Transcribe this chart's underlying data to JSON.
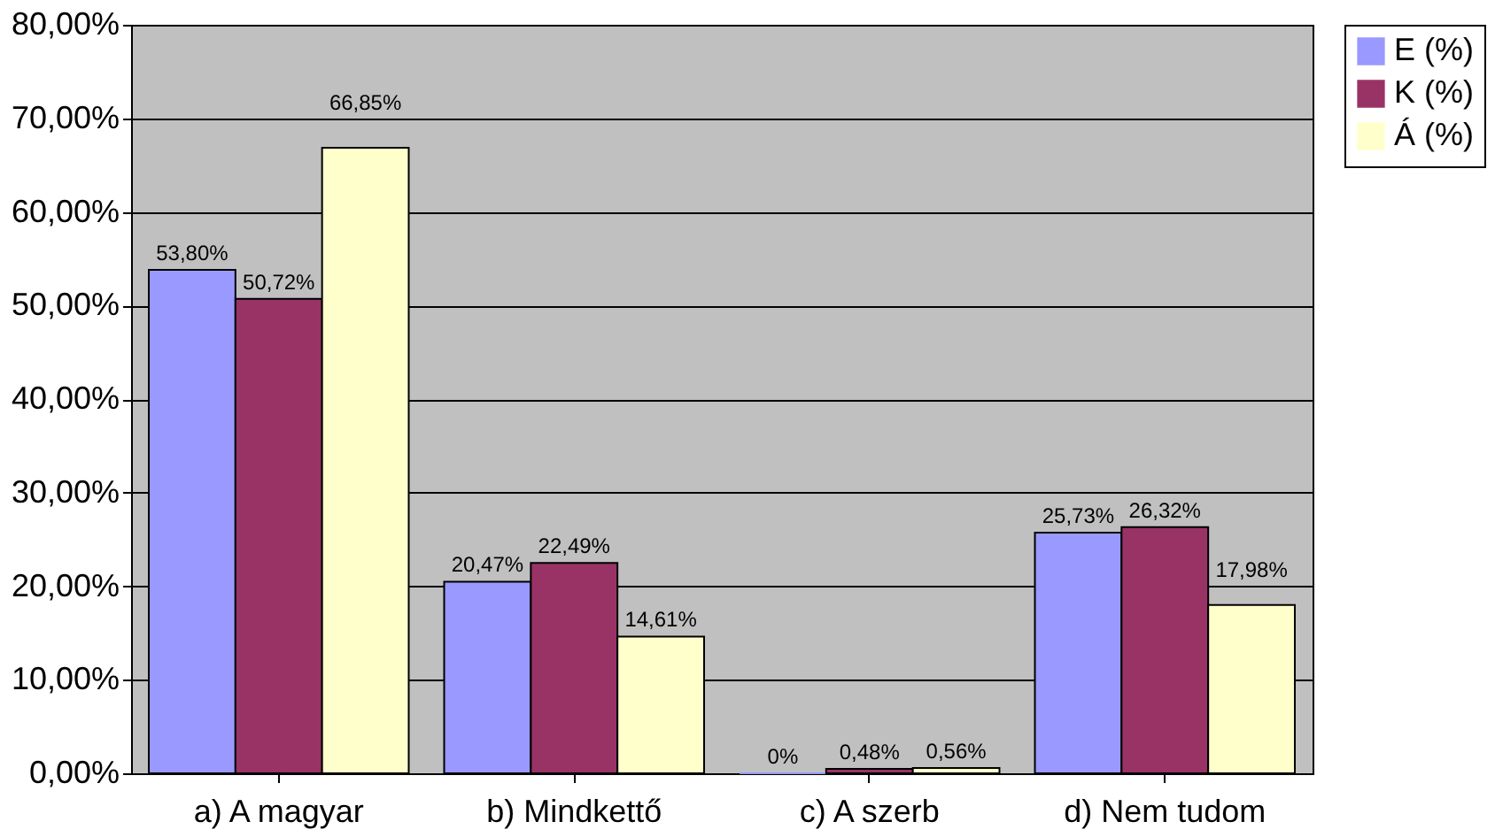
{
  "chart_data": {
    "type": "bar",
    "categories": [
      "a) A magyar",
      "b) Mindkettő",
      "c) A szerb",
      "d) Nem tudom"
    ],
    "series": [
      {
        "name": "E (%)",
        "color": "#9999ff",
        "values": [
          53.8,
          20.47,
          0,
          25.73
        ],
        "value_labels": [
          "53,80%",
          "20,47%",
          "0%",
          "25,73%"
        ]
      },
      {
        "name": "K (%)",
        "color": "#993366",
        "values": [
          50.72,
          22.49,
          0.48,
          26.32
        ],
        "value_labels": [
          "50,72%",
          "22,49%",
          "0,48%",
          "26,32%"
        ]
      },
      {
        "name": "Á (%)",
        "color": "#ffffcc",
        "values": [
          66.85,
          14.61,
          0.56,
          17.98
        ],
        "value_labels": [
          "66,85%",
          "14,61%",
          "0,56%",
          "17,98%"
        ]
      }
    ],
    "ylim": [
      0,
      80
    ],
    "yticks": [
      {
        "value": 0,
        "label": "0,00%"
      },
      {
        "value": 10,
        "label": "10,00%"
      },
      {
        "value": 20,
        "label": "20,00%"
      },
      {
        "value": 30,
        "label": "30,00%"
      },
      {
        "value": 40,
        "label": "40,00%"
      },
      {
        "value": 50,
        "label": "50,00%"
      },
      {
        "value": 60,
        "label": "60,00%"
      },
      {
        "value": 70,
        "label": "70,00%"
      },
      {
        "value": 80,
        "label": "80,00%"
      }
    ],
    "grid": "y",
    "legend": "right"
  }
}
